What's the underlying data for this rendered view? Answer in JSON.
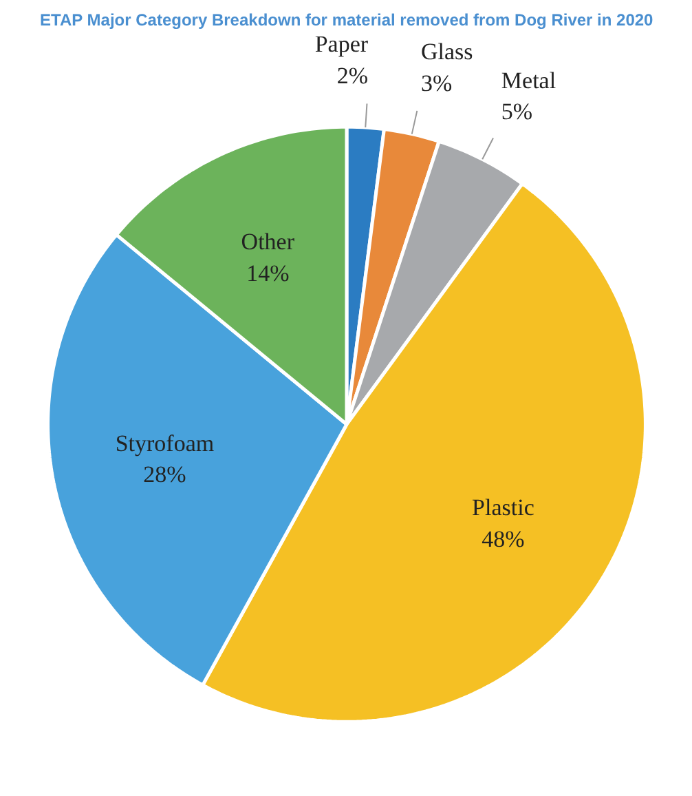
{
  "chart_data": {
    "type": "pie",
    "title": "ETAP Major Category Breakdown for material removed from Dog River in 2020",
    "categories": [
      "Paper",
      "Glass",
      "Metal",
      "Plastic",
      "Styrofoam",
      "Other"
    ],
    "values": [
      2,
      3,
      5,
      48,
      28,
      14
    ],
    "colors": [
      "#2b7cc2",
      "#e8893a",
      "#a7a9ac",
      "#f5c024",
      "#48a2dc",
      "#6cb35b"
    ],
    "value_labels": [
      "2%",
      "3%",
      "5%",
      "48%",
      "28%",
      "14%"
    ]
  }
}
